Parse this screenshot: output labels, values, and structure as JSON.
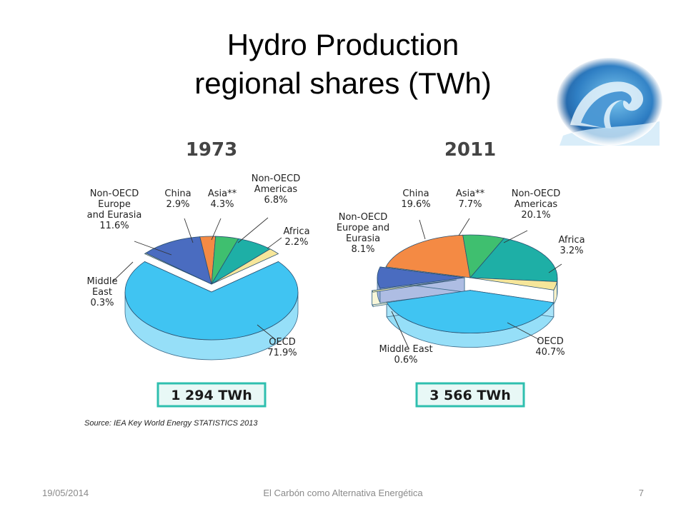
{
  "slide": {
    "title_line1": "Hydro Production",
    "title_line2": "regional shares  (TWh)",
    "source": "Source: IEA Key World Energy STATISTICS 2013",
    "footer_date": "19/05/2014",
    "footer_title": "El Carbón como Alternativa Energética",
    "footer_page": "7"
  },
  "colors": {
    "oecd": "#40C4F2",
    "middle_east": "#F0EAA8",
    "non_oecd_europe_eurasia": "#4A6CC0",
    "china": "#F48A44",
    "asia": "#3FBF6F",
    "non_oecd_americas": "#1EAFA6",
    "africa": "#F6E69A",
    "total_box_fill": "#E8F8F6",
    "total_box_border": "#2FBFAF",
    "year_color": "#444444"
  },
  "chart_data": [
    {
      "type": "pie",
      "year": "1973",
      "total": "1 294 TWh",
      "slices": [
        {
          "key": "oecd",
          "name": "OECD",
          "value": 71.9,
          "label": "71.9%"
        },
        {
          "key": "middle_east",
          "name": "Middle East",
          "value": 0.3,
          "label": "0.3%"
        },
        {
          "key": "non_oecd_europe_eurasia",
          "name": "Non-OECD Europe and Eurasia",
          "value": 11.6,
          "label": "11.6%"
        },
        {
          "key": "china",
          "name": "China",
          "value": 2.9,
          "label": "2.9%"
        },
        {
          "key": "asia",
          "name": "Asia**",
          "value": 4.3,
          "label": "4.3%"
        },
        {
          "key": "non_oecd_americas",
          "name": "Non-OECD Americas",
          "value": 6.8,
          "label": "6.8%"
        },
        {
          "key": "africa",
          "name": "Africa",
          "value": 2.2,
          "label": "2.2%"
        }
      ]
    },
    {
      "type": "pie",
      "year": "2011",
      "total": "3 566 TWh",
      "slices": [
        {
          "key": "oecd",
          "name": "OECD",
          "value": 40.7,
          "label": "40.7%"
        },
        {
          "key": "middle_east",
          "name": "Middle East",
          "value": 0.6,
          "label": "0.6%"
        },
        {
          "key": "non_oecd_europe_eurasia",
          "name": "Non-OECD Europe and Eurasia",
          "value": 8.1,
          "label": "8.1%"
        },
        {
          "key": "china",
          "name": "China",
          "value": 19.6,
          "label": "19.6%"
        },
        {
          "key": "asia",
          "name": "Asia**",
          "value": 7.7,
          "label": "7.7%"
        },
        {
          "key": "non_oecd_americas",
          "name": "Non-OECD Americas",
          "value": 20.1,
          "label": "20.1%"
        },
        {
          "key": "africa",
          "name": "Africa",
          "value": 3.2,
          "label": "3.2%"
        }
      ]
    }
  ]
}
